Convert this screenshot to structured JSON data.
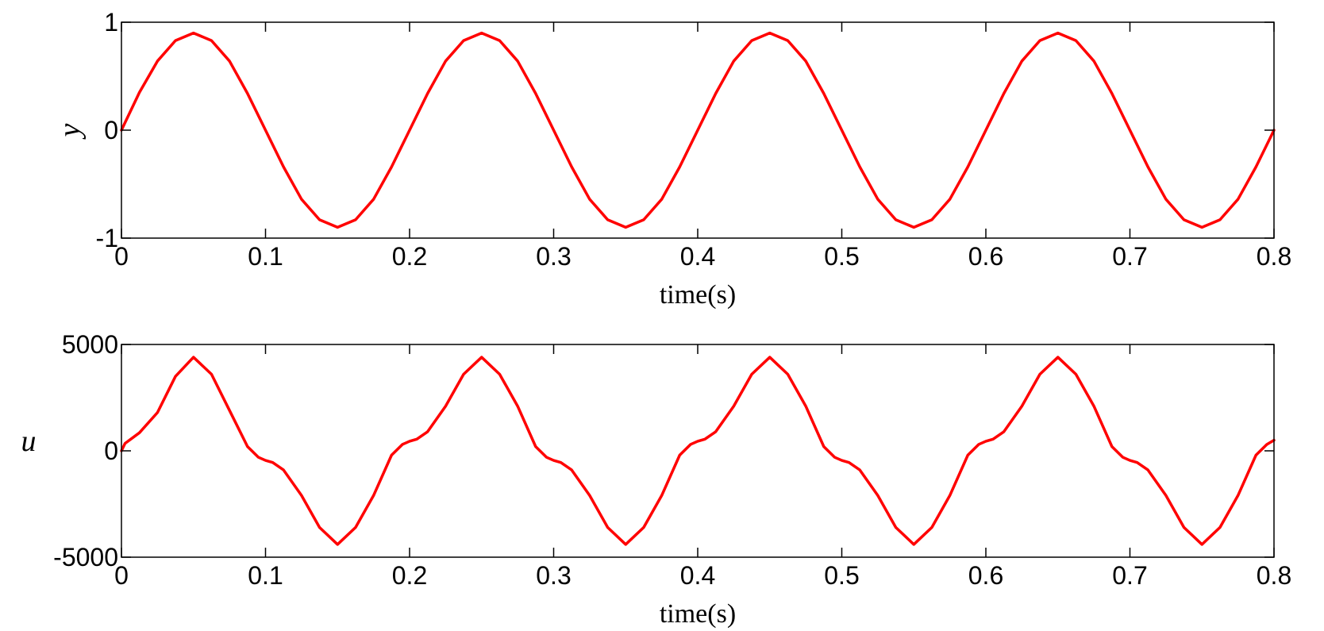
{
  "figure": {
    "background": "#ffffff"
  },
  "chart_data": [
    {
      "type": "line",
      "title": "",
      "xlabel": "time(s)",
      "ylabel": "y",
      "xlim": [
        0,
        0.8
      ],
      "ylim": [
        -1,
        1
      ],
      "x_ticks": [
        0,
        0.1,
        0.2,
        0.3,
        0.4,
        0.5,
        0.6,
        0.7,
        0.8
      ],
      "x_tick_labels": [
        "0",
        "0.1",
        "0.2",
        "0.3",
        "0.4",
        "0.5",
        "0.6",
        "0.7",
        "0.8"
      ],
      "y_ticks": [
        -1,
        0,
        1
      ],
      "y_tick_labels": [
        "-1",
        "0",
        "1"
      ],
      "grid": false,
      "series": [
        {
          "color": "#ff0000",
          "x": [
            0,
            0.0125,
            0.025,
            0.0375,
            0.05,
            0.0625,
            0.075,
            0.0875,
            0.1,
            0.1125,
            0.125,
            0.1375,
            0.15,
            0.1625,
            0.175,
            0.1875,
            0.2,
            0.2125,
            0.225,
            0.2375,
            0.25,
            0.2625,
            0.275,
            0.2875,
            0.3,
            0.3125,
            0.325,
            0.3375,
            0.35,
            0.3625,
            0.375,
            0.3875,
            0.4,
            0.4125,
            0.425,
            0.4375,
            0.45,
            0.4625,
            0.475,
            0.4875,
            0.5,
            0.5125,
            0.525,
            0.5375,
            0.55,
            0.5625,
            0.575,
            0.5875,
            0.6,
            0.6125,
            0.625,
            0.6375,
            0.65,
            0.6625,
            0.675,
            0.6875,
            0.7,
            0.7125,
            0.725,
            0.7375,
            0.75,
            0.7625,
            0.775,
            0.7875,
            0.8
          ],
          "y": [
            0,
            0.35,
            0.64,
            0.83,
            0.9,
            0.83,
            0.64,
            0.34,
            0,
            -0.34,
            -0.64,
            -0.83,
            -0.9,
            -0.83,
            -0.64,
            -0.34,
            0,
            0.34,
            0.64,
            0.83,
            0.9,
            0.83,
            0.64,
            0.34,
            0,
            -0.34,
            -0.64,
            -0.83,
            -0.9,
            -0.83,
            -0.64,
            -0.34,
            0,
            0.34,
            0.64,
            0.83,
            0.9,
            0.83,
            0.64,
            0.34,
            0,
            -0.34,
            -0.64,
            -0.83,
            -0.9,
            -0.83,
            -0.64,
            -0.34,
            0,
            0.34,
            0.64,
            0.83,
            0.9,
            0.83,
            0.64,
            0.34,
            0,
            -0.34,
            -0.64,
            -0.83,
            -0.9,
            -0.83,
            -0.64,
            -0.34,
            0
          ]
        }
      ]
    },
    {
      "type": "line",
      "title": "",
      "xlabel": "time(s)",
      "ylabel": "u",
      "xlim": [
        0,
        0.8
      ],
      "ylim": [
        -5000,
        5000
      ],
      "x_ticks": [
        0,
        0.1,
        0.2,
        0.3,
        0.4,
        0.5,
        0.6,
        0.7,
        0.8
      ],
      "x_tick_labels": [
        "0",
        "0.1",
        "0.2",
        "0.3",
        "0.4",
        "0.5",
        "0.6",
        "0.7",
        "0.8"
      ],
      "y_ticks": [
        -5000,
        0,
        5000
      ],
      "y_tick_labels": [
        "-5000",
        "0",
        "5000"
      ],
      "grid": false,
      "series": [
        {
          "color": "#ff0000",
          "x": [
            0,
            0.0025,
            0.0075,
            0.0125,
            0.025,
            0.0375,
            0.05,
            0.0625,
            0.075,
            0.0875,
            0.095,
            0.1,
            0.105,
            0.1125,
            0.125,
            0.1375,
            0.15,
            0.1625,
            0.175,
            0.1875,
            0.195,
            0.2,
            0.205,
            0.2125,
            0.225,
            0.2375,
            0.25,
            0.2625,
            0.275,
            0.2875,
            0.295,
            0.3,
            0.305,
            0.3125,
            0.325,
            0.3375,
            0.35,
            0.3625,
            0.375,
            0.3875,
            0.395,
            0.4,
            0.405,
            0.4125,
            0.425,
            0.4375,
            0.45,
            0.4625,
            0.475,
            0.4875,
            0.495,
            0.5,
            0.505,
            0.5125,
            0.525,
            0.5375,
            0.55,
            0.5625,
            0.575,
            0.5875,
            0.595,
            0.6,
            0.605,
            0.6125,
            0.625,
            0.6375,
            0.65,
            0.6625,
            0.675,
            0.6875,
            0.695,
            0.7,
            0.705,
            0.7125,
            0.725,
            0.7375,
            0.75,
            0.7625,
            0.775,
            0.7875,
            0.795,
            0.8
          ],
          "y": [
            0,
            350,
            600,
            850,
            1800,
            3500,
            4400,
            3600,
            1900,
            200,
            -300,
            -450,
            -550,
            -900,
            -2100,
            -3600,
            -4400,
            -3600,
            -2100,
            -200,
            300,
            450,
            550,
            900,
            2100,
            3600,
            4400,
            3600,
            2100,
            200,
            -300,
            -450,
            -550,
            -900,
            -2100,
            -3600,
            -4400,
            -3600,
            -2100,
            -200,
            300,
            450,
            550,
            900,
            2100,
            3600,
            4400,
            3600,
            2100,
            200,
            -300,
            -450,
            -550,
            -900,
            -2100,
            -3600,
            -4400,
            -3600,
            -2100,
            -200,
            300,
            450,
            550,
            900,
            2100,
            3600,
            4400,
            3600,
            2100,
            200,
            -300,
            -450,
            -550,
            -900,
            -2100,
            -3600,
            -4400,
            -3600,
            -2100,
            -200,
            300,
            500
          ]
        }
      ]
    }
  ]
}
